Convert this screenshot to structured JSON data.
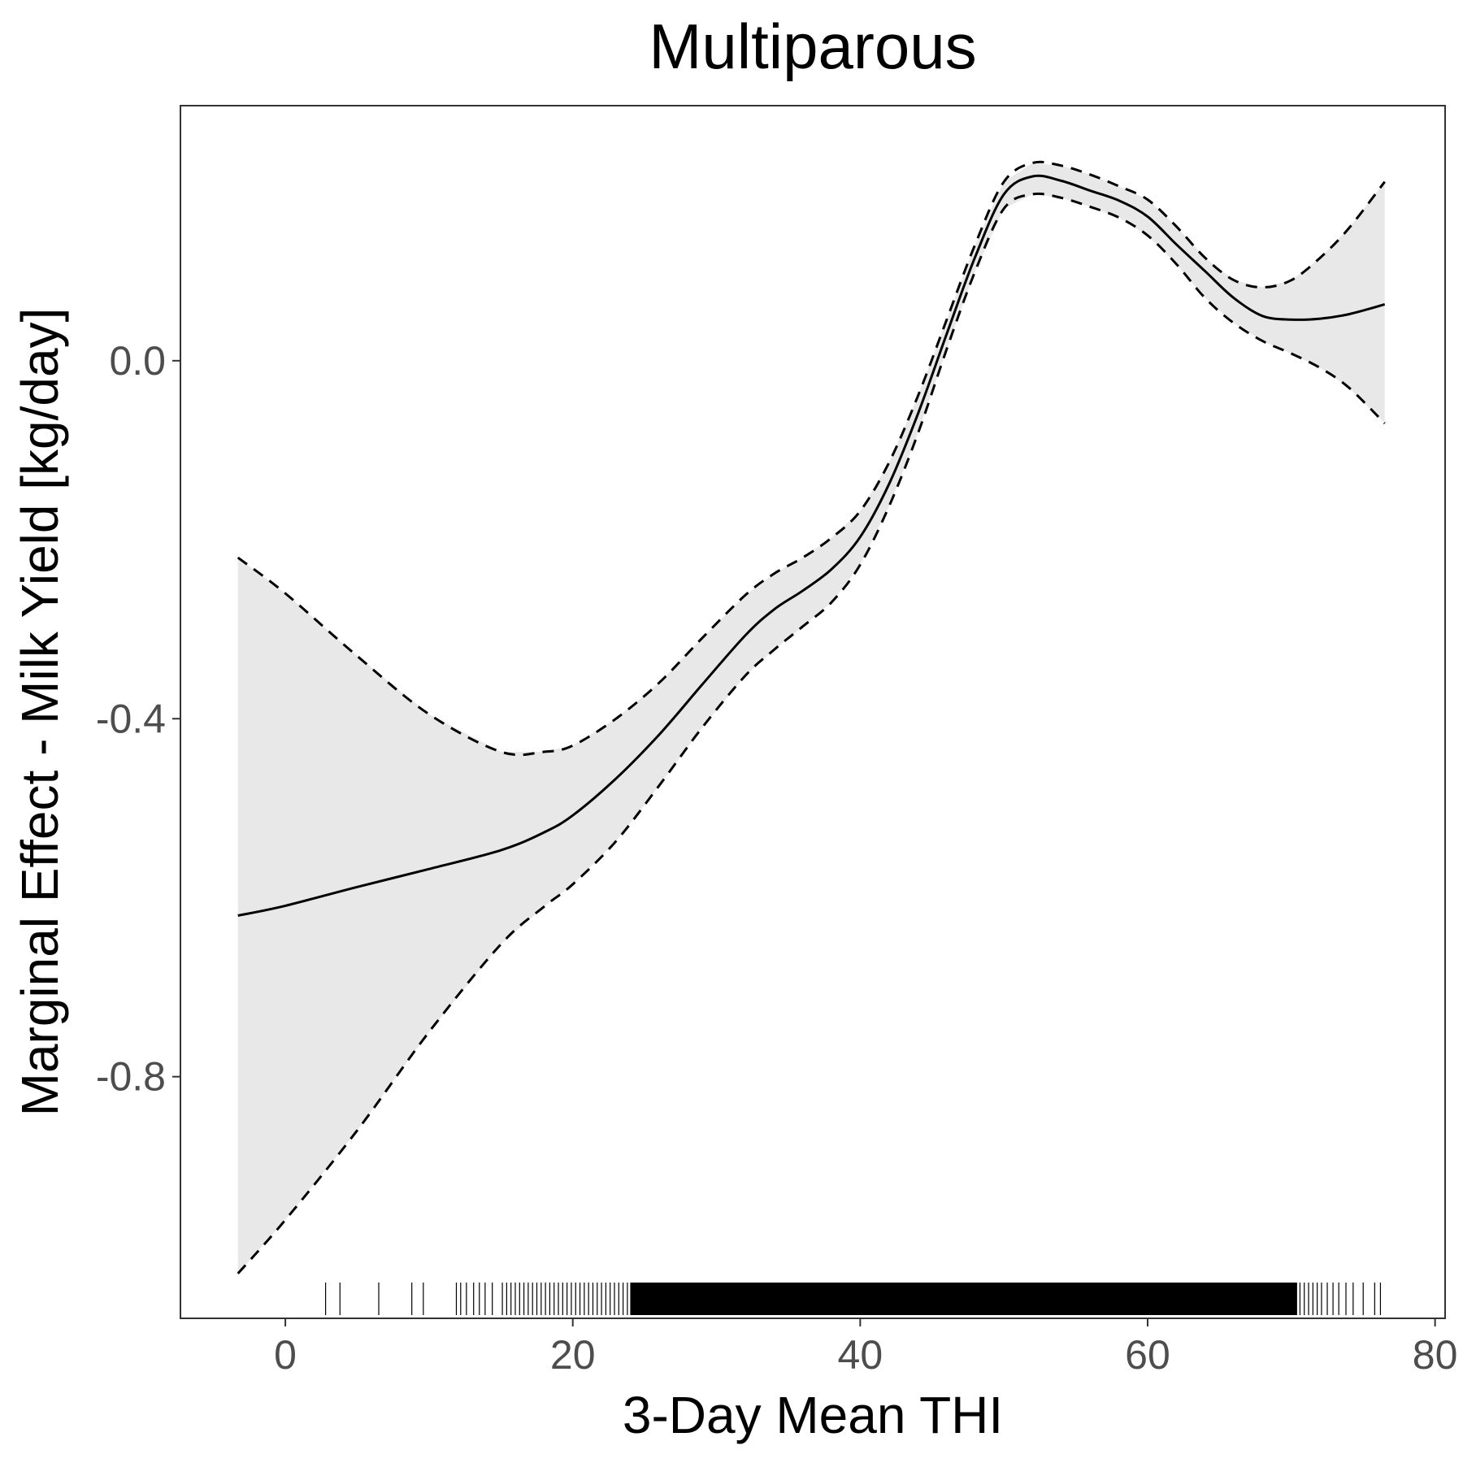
{
  "chart_data": {
    "type": "line",
    "title": "Multiparous",
    "xlabel": "3-Day Mean THI",
    "ylabel": "Marginal Effect - Milk Yield [kg/day]",
    "xlim": [
      -7.3,
      80.7
    ],
    "ylim": [
      -1.07,
      0.285
    ],
    "x_ticks": [
      0,
      20,
      40,
      60,
      80
    ],
    "x_tick_labels": [
      "0",
      "20",
      "40",
      "60",
      "80"
    ],
    "y_ticks": [
      0.0,
      -0.4,
      -0.8
    ],
    "y_tick_labels": [
      "0.0",
      "-0.4",
      "-0.8"
    ],
    "grid": false,
    "legend": "none",
    "colors": {
      "line": "#000000",
      "band": "#e8e8e8",
      "tick_text": "#4d4d4d",
      "frame": "#333333"
    },
    "series": [
      {
        "role": "estimate",
        "style": "solid",
        "x": [
          -3.3,
          0,
          5,
          10,
          15,
          18,
          20,
          23,
          26,
          29,
          32,
          34,
          36,
          38,
          40,
          42,
          44,
          46,
          48,
          50,
          52,
          54,
          56,
          58,
          60,
          62,
          64,
          66,
          68,
          70,
          72,
          74,
          76.5
        ],
        "y": [
          -0.62,
          -0.609,
          -0.588,
          -0.568,
          -0.547,
          -0.527,
          -0.508,
          -0.467,
          -0.418,
          -0.362,
          -0.307,
          -0.278,
          -0.257,
          -0.233,
          -0.197,
          -0.138,
          -0.06,
          0.029,
          0.116,
          0.186,
          0.206,
          0.201,
          0.19,
          0.179,
          0.161,
          0.13,
          0.1,
          0.07,
          0.05,
          0.046,
          0.047,
          0.052,
          0.063
        ]
      },
      {
        "role": "upper-bound",
        "style": "dashed",
        "x": [
          -3.3,
          0,
          5,
          10,
          15,
          18,
          20,
          23,
          26,
          29,
          32,
          34,
          36,
          38,
          40,
          42,
          44,
          46,
          48,
          50,
          52,
          54,
          56,
          58,
          60,
          62,
          64,
          66,
          68,
          70,
          72,
          74,
          76.5
        ],
        "y": [
          -0.22,
          -0.26,
          -0.33,
          -0.395,
          -0.437,
          -0.437,
          -0.43,
          -0.4,
          -0.36,
          -0.31,
          -0.262,
          -0.238,
          -0.22,
          -0.198,
          -0.168,
          -0.114,
          -0.04,
          0.045,
          0.13,
          0.2,
          0.221,
          0.218,
          0.208,
          0.195,
          0.18,
          0.15,
          0.115,
          0.09,
          0.082,
          0.09,
          0.115,
          0.148,
          0.2
        ]
      },
      {
        "role": "lower-bound",
        "style": "dashed",
        "x": [
          -3.3,
          0,
          5,
          10,
          15,
          18,
          20,
          23,
          26,
          29,
          32,
          34,
          36,
          38,
          40,
          42,
          44,
          46,
          48,
          50,
          52,
          54,
          56,
          58,
          60,
          62,
          64,
          66,
          68,
          70,
          72,
          74,
          76.5
        ],
        "y": [
          -1.02,
          -0.96,
          -0.86,
          -0.75,
          -0.652,
          -0.61,
          -0.585,
          -0.537,
          -0.475,
          -0.41,
          -0.352,
          -0.323,
          -0.297,
          -0.27,
          -0.228,
          -0.163,
          -0.082,
          0.012,
          0.1,
          0.17,
          0.186,
          0.182,
          0.172,
          0.16,
          0.14,
          0.108,
          0.07,
          0.042,
          0.022,
          0.008,
          -0.008,
          -0.03,
          -0.07
        ]
      }
    ],
    "rug_x": [
      2.8,
      3.8,
      6.5,
      8.8,
      9.6,
      11.9,
      12.2,
      12.6,
      13.1,
      13.5,
      13.9,
      14.4,
      15.1,
      15.4,
      15.7,
      16.0,
      16.3,
      16.6,
      16.9,
      17.2,
      17.5,
      17.8,
      18.1,
      18.4,
      18.7,
      19.0,
      19.3,
      19.6,
      19.9,
      20.2,
      20.5,
      20.8,
      21.1,
      21.4,
      21.7,
      22.0,
      22.3,
      22.6,
      22.9,
      23.2,
      23.5,
      23.8,
      70.6,
      70.9,
      71.2,
      71.5,
      71.8,
      72.1,
      72.5,
      72.9,
      73.3,
      73.8,
      74.3,
      75.0,
      75.8,
      76.2
    ],
    "rug_dense_range": [
      24.0,
      70.4
    ]
  }
}
